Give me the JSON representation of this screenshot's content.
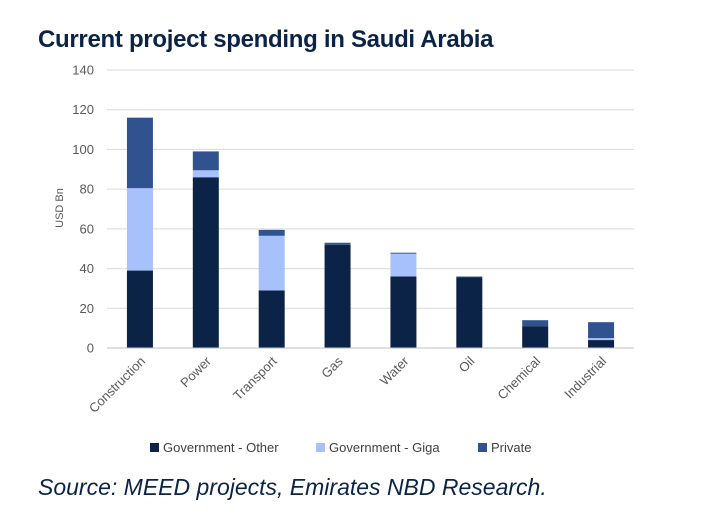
{
  "title": "Current project spending in Saudi Arabia",
  "source": "Source: MEED projects, Emirates NBD Research.",
  "chart_data": {
    "type": "bar",
    "stacked": true,
    "title": "Current project spending in Saudi Arabia",
    "xlabel": "",
    "ylabel": "USD Bn",
    "ylim": [
      0,
      140
    ],
    "yticks": [
      0,
      20,
      40,
      60,
      80,
      100,
      120,
      140
    ],
    "grid": true,
    "legend_position": "bottom",
    "categories": [
      "Construction",
      "Power",
      "Transport",
      "Gas",
      "Water",
      "Oil",
      "Chemical",
      "Industrial"
    ],
    "series": [
      {
        "name": "Government - Other",
        "color": "#0b2346",
        "values": [
          39,
          86,
          29,
          52,
          36,
          35.5,
          11,
          4
        ]
      },
      {
        "name": "Government - Giga",
        "color": "#a6c1fb",
        "values": [
          41.5,
          3.5,
          27.5,
          0,
          11.5,
          0,
          0,
          1
        ]
      },
      {
        "name": "Private",
        "color": "#30538f",
        "values": [
          35.5,
          9.5,
          3,
          1,
          0.5,
          0.5,
          3,
          8
        ]
      }
    ]
  }
}
